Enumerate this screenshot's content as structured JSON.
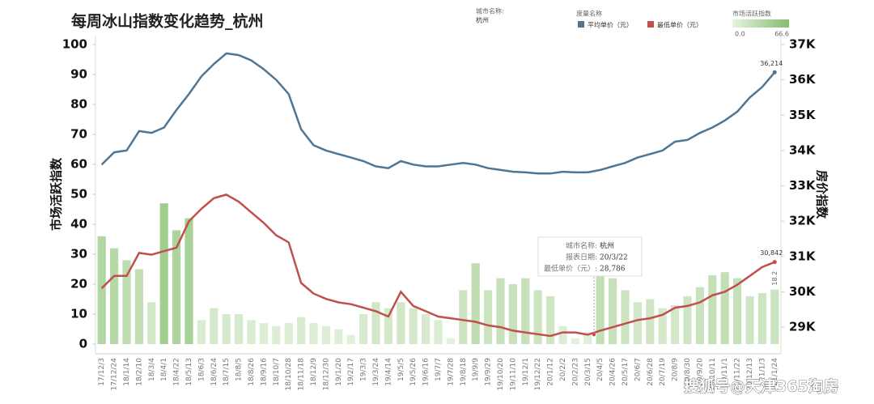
{
  "chart_data": {
    "type": "bar-line",
    "title": "每周冰山指数变化趋势_杭州",
    "y_label": "市场活跃指数",
    "y2_label": "房价指数",
    "city_legend_title": "城市名称:",
    "city": "杭州",
    "measure_legend_title": "度量名称",
    "color_legend_title": "市场活跃指数",
    "watermark": "搜狐号@天津365淘房",
    "categories": [
      "17/12/3",
      "17/12/24",
      "18/1/14",
      "18/2/10",
      "18/3/4",
      "18/4/1",
      "18/4/22",
      "18/5/13",
      "18/6/3",
      "18/6/24",
      "18/7/15",
      "18/8/5",
      "18/8/26",
      "18/9/16",
      "18/10/7",
      "18/10/28",
      "18/11/18",
      "18/12/9",
      "18/12/30",
      "19/1/20",
      "19/2/17",
      "19/3/3",
      "19/3/24",
      "19/4/14",
      "19/5/5",
      "19/5/26",
      "19/6/16",
      "19/7/7",
      "19/7/28",
      "19/8/18",
      "19/9/9",
      "19/9/29",
      "19/10/20",
      "19/11/10",
      "19/12/1",
      "19/12/22",
      "20/1/12",
      "20/2/2",
      "20/2/23",
      "20/3/15",
      "20/4/5",
      "20/4/26",
      "20/5/17",
      "20/6/7",
      "20/6/28",
      "20/7/19",
      "20/8/9",
      "20/8/30",
      "20/9/20",
      "20/10/11",
      "20/11/1",
      "20/11/22",
      "20/12/13",
      "21/1/3",
      "21/1/24"
    ],
    "bars": {
      "name": "市场活跃指数",
      "values": [
        36,
        32,
        28,
        25,
        14,
        47,
        38,
        42,
        8,
        12,
        10,
        10,
        8,
        7,
        6,
        7,
        9,
        7,
        6,
        5,
        3,
        10,
        14,
        12,
        14,
        12,
        10,
        8,
        2,
        18,
        27,
        18,
        22,
        20,
        22,
        18,
        16,
        6,
        2,
        4,
        24,
        22,
        18,
        14,
        15,
        12,
        13,
        16,
        19,
        23,
        24,
        22,
        16,
        17,
        18.2
      ]
    },
    "color_scale": {
      "colors": [
        "#e6f2df",
        "#84be6c"
      ],
      "min": {
        "value": 0,
        "label": "0.0"
      },
      "max": 66.6
    },
    "series": [
      {
        "name": "平均单价（元）",
        "color": "#4e7694",
        "axis": "y2",
        "values": [
          33600,
          33950,
          34000,
          34550,
          34500,
          34650,
          35150,
          35600,
          36100,
          36450,
          36750,
          36700,
          36550,
          36300,
          36000,
          35600,
          34600,
          34150,
          34000,
          33900,
          33800,
          33700,
          33550,
          33500,
          33700,
          33600,
          33550,
          33550,
          33600,
          33650,
          33600,
          33500,
          33450,
          33400,
          33380,
          33350,
          33350,
          33400,
          33380,
          33380,
          33450,
          33550,
          33650,
          33800,
          33900,
          34000,
          34250,
          34300,
          34500,
          34650,
          34850,
          35100,
          35500,
          35800,
          36214
        ],
        "value_labels": [
          null,
          null,
          null,
          null,
          null,
          null,
          null,
          null,
          null,
          null,
          null,
          null,
          null,
          null,
          null,
          null,
          null,
          null,
          null,
          null,
          null,
          null,
          null,
          null,
          null,
          null,
          null,
          null,
          null,
          null,
          null,
          null,
          null,
          null,
          null,
          null,
          null,
          null,
          null,
          null,
          null,
          null,
          null,
          null,
          null,
          null,
          null,
          null,
          null,
          null,
          null,
          null,
          null,
          null,
          "36,214"
        ]
      },
      {
        "name": "最低单价（元）",
        "color": "#c0504d",
        "axis": "y2",
        "values": [
          30100,
          30450,
          30450,
          31100,
          31050,
          31150,
          31250,
          32000,
          32350,
          32650,
          32750,
          32550,
          32250,
          31950,
          31600,
          31400,
          30250,
          29950,
          29800,
          29700,
          29650,
          29550,
          29450,
          29300,
          30000,
          29600,
          29450,
          29300,
          29250,
          29200,
          29150,
          29050,
          29000,
          28900,
          28850,
          28800,
          28750,
          28850,
          28850,
          28786,
          28900,
          29000,
          29100,
          29200,
          29250,
          29350,
          29550,
          29600,
          29700,
          29900,
          30000,
          30200,
          30450,
          30700,
          30842
        ],
        "value_labels": [
          null,
          null,
          null,
          null,
          null,
          null,
          null,
          null,
          null,
          null,
          null,
          null,
          null,
          null,
          null,
          null,
          null,
          null,
          null,
          null,
          null,
          null,
          null,
          null,
          null,
          null,
          null,
          null,
          null,
          null,
          null,
          null,
          null,
          null,
          null,
          null,
          null,
          null,
          null,
          null,
          null,
          null,
          null,
          null,
          null,
          null,
          null,
          null,
          null,
          null,
          null,
          null,
          null,
          null,
          "30,842"
        ]
      }
    ],
    "ylim": [
      0,
      100
    ],
    "yticks": [
      0,
      10,
      20,
      30,
      40,
      50,
      60,
      70,
      80,
      90,
      100
    ],
    "y2lim": [
      28520,
      37000
    ],
    "y2ticks": [
      {
        "value": 29000,
        "label": "29K"
      },
      {
        "value": 30000,
        "label": "30K"
      },
      {
        "value": 31000,
        "label": "31K"
      },
      {
        "value": 32000,
        "label": "32K"
      },
      {
        "value": 33000,
        "label": "33K"
      },
      {
        "value": 34000,
        "label": "34K"
      },
      {
        "value": 35000,
        "label": "35K"
      },
      {
        "value": 36000,
        "label": "36K"
      },
      {
        "value": 37000,
        "label": "37K"
      }
    ],
    "grid": false,
    "tooltip": {
      "city_label": "城市名称:",
      "city": "杭州",
      "date_label": "报表日期:",
      "date": "20/3/22",
      "measure_label": "最低单价（元）:",
      "value": 28786,
      "value_label": "28,786"
    }
  }
}
